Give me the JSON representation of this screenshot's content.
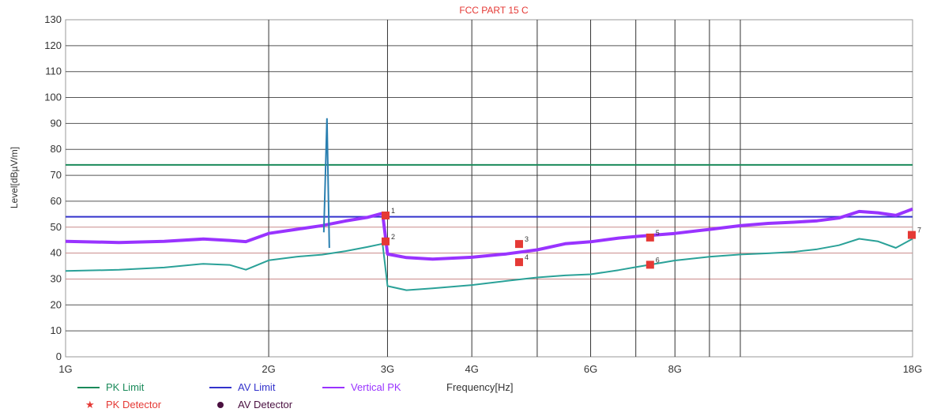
{
  "chart_data": {
    "type": "line",
    "title": "FCC PART 15 C",
    "ylabel": "Level[dBµV/m]",
    "xlabel": "Frequency[Hz]",
    "x_scale": "log",
    "xlim": [
      "1G",
      "18G"
    ],
    "ylim": [
      0,
      130
    ],
    "y_ticks": [
      0,
      10,
      20,
      30,
      40,
      50,
      60,
      70,
      80,
      90,
      100,
      110,
      120,
      130
    ],
    "x_ticks": [
      "1G",
      "2G",
      "3G",
      "4G",
      "6G",
      "8G",
      "18G"
    ],
    "grid": true,
    "series": [
      {
        "name": "PK Limit",
        "color": "#1a8a5a",
        "x_GHz": [
          1,
          18
        ],
        "y": [
          74,
          74
        ]
      },
      {
        "name": "AV Limit",
        "color": "#3333cc",
        "x_GHz": [
          1,
          18
        ],
        "y": [
          54,
          54
        ]
      },
      {
        "name": "Vertical PK",
        "color": "#9933ff",
        "x_GHz": [
          1.0,
          1.2,
          1.4,
          1.6,
          1.75,
          1.85,
          2.0,
          2.2,
          2.4,
          2.6,
          2.8,
          2.95,
          3.0,
          3.2,
          3.5,
          4.0,
          4.5,
          5.0,
          5.5,
          6.0,
          6.6,
          7.0,
          8.0,
          9.0,
          10.0,
          11.0,
          12.0,
          13.0,
          14.0,
          15.0,
          16.0,
          17.0,
          18.0
        ],
        "y": [
          44,
          44,
          45,
          46,
          45,
          44,
          47,
          49,
          51,
          53,
          54,
          55,
          39,
          38,
          38,
          39,
          40,
          41,
          43,
          44,
          46,
          47,
          48,
          49,
          50,
          51,
          52,
          53,
          54,
          56,
          55,
          54,
          57
        ]
      },
      {
        "name": "Vertical PK (lower)",
        "color": "#2aa198",
        "x_GHz": [
          1.0,
          1.2,
          1.4,
          1.6,
          1.75,
          1.85,
          2.0,
          2.2,
          2.4,
          2.6,
          2.8,
          2.95,
          3.0,
          3.2,
          3.5,
          4.0,
          4.5,
          5.0,
          5.5,
          6.0,
          6.6,
          7.0,
          8.0,
          9.0,
          10.0,
          11.0,
          12.0,
          13.0,
          14.0,
          15.0,
          16.0,
          17.0,
          18.0
        ],
        "y": [
          33,
          34,
          35,
          36,
          35,
          33,
          37,
          39,
          40,
          41,
          42,
          43,
          27,
          26,
          27,
          28,
          29,
          30,
          31,
          32,
          34,
          35,
          37,
          38,
          39,
          40,
          41,
          42,
          43,
          45,
          44,
          42,
          46
        ]
      }
    ],
    "spike": {
      "x_GHz": 2.44,
      "y": 92
    },
    "markers": [
      {
        "label": "1",
        "x_GHz": 2.98,
        "y": 54.5
      },
      {
        "label": "2",
        "x_GHz": 2.98,
        "y": 44.5
      },
      {
        "label": "3",
        "x_GHz": 4.7,
        "y": 43.5
      },
      {
        "label": "4",
        "x_GHz": 4.7,
        "y": 36.5
      },
      {
        "label": "5",
        "x_GHz": 7.35,
        "y": 46
      },
      {
        "label": "6",
        "x_GHz": 7.35,
        "y": 35.5
      },
      {
        "label": "7",
        "x_GHz": 17.95,
        "y": 47
      }
    ],
    "legend": [
      {
        "label": "PK Limit",
        "color": "#1a8a5a",
        "kind": "line"
      },
      {
        "label": "AV Limit",
        "color": "#3333cc",
        "kind": "line"
      },
      {
        "label": "Vertical PK",
        "color": "#9933ff",
        "kind": "line"
      },
      {
        "label": "PK Detector",
        "color": "#e53935",
        "kind": "star"
      },
      {
        "label": "AV Detector",
        "color": "#4a1040",
        "kind": "dot"
      }
    ]
  }
}
